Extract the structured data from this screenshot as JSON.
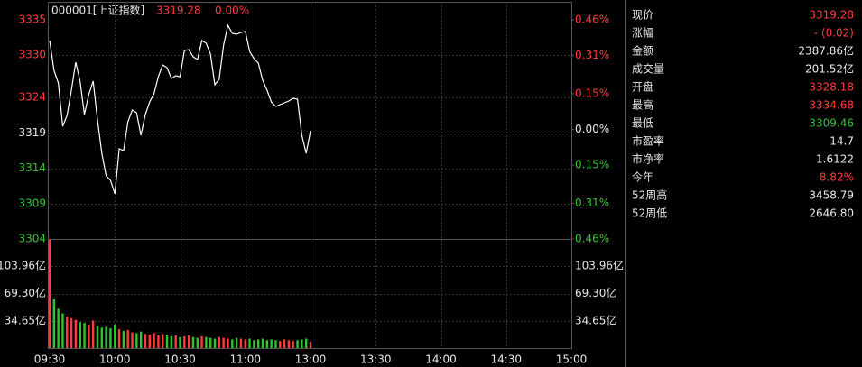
{
  "chart_data": [
    {
      "type": "line",
      "title": "000001[上证指数]",
      "price": 3319.28,
      "change": "0.00%",
      "header_color": "#ff3b3b",
      "x": [
        0,
        2,
        4,
        6,
        8,
        10,
        12,
        14,
        16,
        18,
        20,
        22,
        24,
        26,
        28,
        30,
        32,
        34,
        36,
        38,
        40,
        42,
        44,
        46,
        48,
        50,
        52,
        54,
        56,
        58,
        60,
        62,
        64,
        66,
        68,
        70,
        72,
        74,
        76,
        78,
        80,
        82,
        84,
        86,
        88,
        90,
        92,
        94,
        96,
        98,
        100,
        102,
        104,
        106,
        108,
        110,
        112,
        114,
        116,
        118,
        120
      ],
      "series": [
        {
          "color": "#ffffff",
          "values": [
            3332.07,
            3327.86,
            3326.07,
            3319.95,
            3321.48,
            3325.05,
            3329.0,
            3326.32,
            3321.6,
            3324.41,
            3326.32,
            3320.84,
            3316.12,
            3312.93,
            3312.29,
            3310.38,
            3316.76,
            3316.5,
            3320.58,
            3322.24,
            3321.86,
            3318.67,
            3321.6,
            3323.39,
            3324.54,
            3326.96,
            3328.62,
            3328.24,
            3326.71,
            3327.09,
            3326.96,
            3330.66,
            3330.79,
            3329.77,
            3329.39,
            3332.07,
            3331.68,
            3330.15,
            3325.81,
            3326.58,
            3331.43,
            3334.23,
            3333.09,
            3332.96,
            3333.21,
            3333.34,
            3330.53,
            3329.51,
            3328.88,
            3326.45,
            3325.05,
            3323.39,
            3322.75,
            3323.01,
            3323.26,
            3323.52,
            3323.9,
            3323.77,
            3318.67,
            3316.12,
            3319.31
          ]
        }
      ],
      "xlim": [
        0,
        240
      ],
      "xticks": [
        {
          "value": 0,
          "label": "09:30"
        },
        {
          "value": 30,
          "label": "10:00"
        },
        {
          "value": 60,
          "label": "10:30"
        },
        {
          "value": 90,
          "label": "11:00"
        },
        {
          "value": 120,
          "label": "13:00"
        },
        {
          "value": 150,
          "label": "13:30"
        },
        {
          "value": 180,
          "label": "14:00"
        },
        {
          "value": 210,
          "label": "14:30"
        },
        {
          "value": 240,
          "label": "15:00"
        }
      ],
      "ylim": [
        3304,
        3335
      ],
      "yticks": [
        3335,
        3330,
        3324,
        3319,
        3314,
        3309,
        3304
      ],
      "y2lim": [
        -0.46,
        0.46
      ],
      "y2ticks": [
        {
          "value": 0.46,
          "label": "0.46%"
        },
        {
          "value": 0.31,
          "label": "0.31%"
        },
        {
          "value": 0.15,
          "label": "0.15%"
        },
        {
          "value": 0.0,
          "label": "0.00%"
        },
        {
          "value": -0.15,
          "label": "0.15%"
        },
        {
          "value": -0.31,
          "label": "0.31%"
        },
        {
          "value": -0.46,
          "label": "0.46%"
        }
      ],
      "up_color": "#ff3b3b",
      "down_color": "#2fc52f",
      "flat_color": "#e6e6e6",
      "grid": true
    },
    {
      "type": "bar",
      "values": [
        138,
        62,
        50,
        44,
        40,
        38,
        36,
        33,
        32,
        30,
        35,
        28,
        26,
        27,
        25,
        30,
        24,
        22,
        23,
        20,
        19,
        21,
        18,
        17,
        19,
        16,
        18,
        17,
        15,
        16,
        14,
        15,
        16,
        14,
        13,
        15,
        14,
        13,
        12,
        14,
        13,
        12,
        11,
        13,
        12,
        11,
        12,
        10,
        11,
        12,
        10,
        11,
        10,
        9,
        11,
        10,
        9,
        10,
        11,
        12,
        8
      ],
      "ylim": [
        0,
        138.6
      ],
      "yticks": [
        {
          "value": 103.96,
          "label": "103.96亿"
        },
        {
          "value": 69.3,
          "label": "69.30亿"
        },
        {
          "value": 34.65,
          "label": "34.65亿"
        }
      ],
      "grid": true
    }
  ],
  "quote_panel": [
    {
      "label": "现价",
      "value": "3319.28",
      "color": "#ff3b3b"
    },
    {
      "label": "涨幅",
      "value": "- (0.02)",
      "color": "#ff3b3b"
    },
    {
      "label": "金额",
      "value": "2387.86亿",
      "color": "#e6e6e6"
    },
    {
      "label": "成交量",
      "value": "201.52亿",
      "color": "#e6e6e6"
    },
    {
      "label": "开盘",
      "value": "3328.18",
      "color": "#ff3b3b"
    },
    {
      "label": "最高",
      "value": "3334.68",
      "color": "#ff3b3b"
    },
    {
      "label": "最低",
      "value": "3309.46",
      "color": "#2fc52f"
    },
    {
      "label": "市盈率",
      "value": "14.7",
      "color": "#e6e6e6"
    },
    {
      "label": "市净率",
      "value": "1.6122",
      "color": "#e6e6e6"
    },
    {
      "label": "今年",
      "value": "8.82%",
      "color": "#ff3b3b"
    },
    {
      "label": "52周高",
      "value": "3458.79",
      "color": "#e6e6e6"
    },
    {
      "label": "52周低",
      "value": "2646.80",
      "color": "#e6e6e6"
    }
  ]
}
